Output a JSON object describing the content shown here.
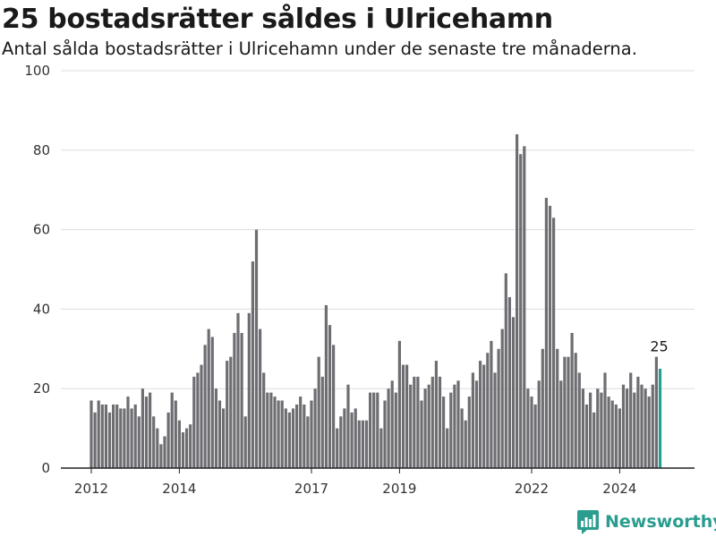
{
  "header": {
    "title": "25 bostadsrätter såldes i Ulricehamn",
    "subtitle": "Antal sålda bostadsrätter i Ulricehamn under de senaste tre månaderna."
  },
  "brand": {
    "name": "Newsworthy"
  },
  "colors": {
    "bar": "#6e6d72",
    "highlight": "#2a9d8f",
    "grid": "#dddddd",
    "axis": "#222222"
  },
  "chart_data": {
    "type": "bar",
    "ylim": [
      0,
      100
    ],
    "yticks": [
      0,
      20,
      40,
      60,
      80,
      100
    ],
    "ytick_labels": [
      "0",
      "20",
      "40",
      "60",
      "80",
      "100"
    ],
    "xticks": [
      {
        "label": "2012",
        "index": 0
      },
      {
        "label": "2014",
        "index": 24
      },
      {
        "label": "2017",
        "index": 60
      },
      {
        "label": "2019",
        "index": 84
      },
      {
        "label": "2022",
        "index": 120
      },
      {
        "label": "2024",
        "index": 144
      }
    ],
    "grid": true,
    "last_value_label": "25",
    "values": [
      17,
      14,
      17,
      16,
      16,
      14,
      16,
      16,
      15,
      15,
      18,
      15,
      16,
      13,
      20,
      18,
      19,
      13,
      10,
      6,
      8,
      14,
      19,
      17,
      12,
      9,
      10,
      11,
      23,
      24,
      26,
      31,
      35,
      33,
      20,
      17,
      15,
      27,
      28,
      34,
      39,
      34,
      13,
      39,
      52,
      60,
      35,
      24,
      19,
      19,
      18,
      17,
      17,
      15,
      14,
      15,
      16,
      18,
      16,
      13,
      17,
      20,
      28,
      23,
      41,
      36,
      31,
      10,
      13,
      15,
      21,
      14,
      15,
      12,
      12,
      12,
      19,
      19,
      19,
      10,
      17,
      20,
      22,
      19,
      32,
      26,
      26,
      21,
      23,
      23,
      17,
      20,
      21,
      23,
      27,
      23,
      18,
      10,
      19,
      21,
      22,
      15,
      12,
      18,
      24,
      22,
      27,
      26,
      29,
      32,
      24,
      30,
      35,
      49,
      43,
      38,
      84,
      79,
      81,
      20,
      18,
      16,
      22,
      30,
      68,
      66,
      63,
      30,
      22,
      28,
      28,
      34,
      29,
      24,
      20,
      16,
      19,
      14,
      20,
      19,
      24,
      18,
      17,
      16,
      15,
      21,
      20,
      24,
      19,
      23,
      21,
      20,
      18,
      21,
      28,
      25
    ]
  }
}
